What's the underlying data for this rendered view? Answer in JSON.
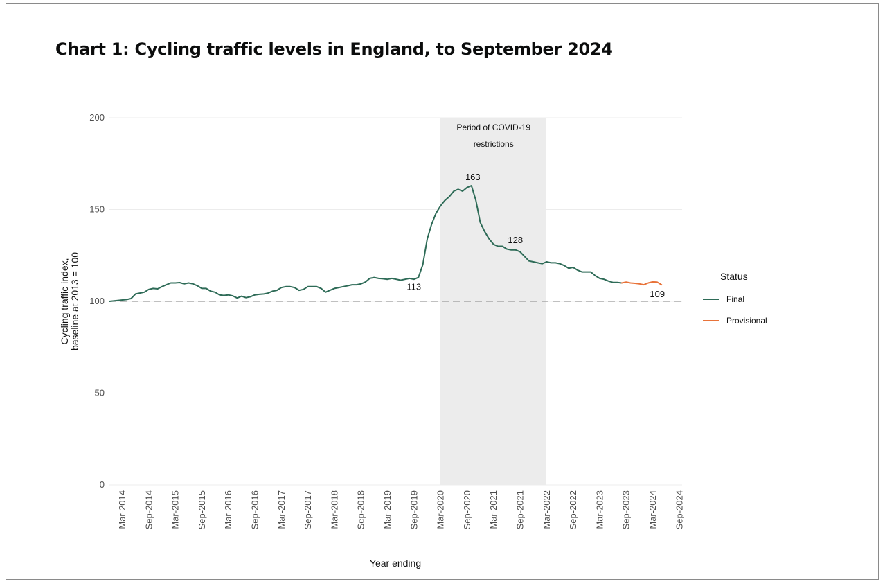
{
  "chart_data": {
    "type": "line",
    "title": "Chart 1: Cycling traffic levels in England, to September 2024",
    "xlabel": "Year ending",
    "ylabel_line1": "Cycling traffic index,",
    "ylabel_line2": "baseline at 2013 = 100",
    "ylim": [
      0,
      200
    ],
    "y_ticks": [
      "0",
      "50",
      "100",
      "150",
      "200"
    ],
    "baseline": 100,
    "x_tick_labels": [
      "Mar-2014",
      "Sep-2014",
      "Mar-2015",
      "Sep-2015",
      "Mar-2016",
      "Sep-2016",
      "Mar-2017",
      "Sep-2017",
      "Mar-2018",
      "Sep-2018",
      "Mar-2019",
      "Sep-2019",
      "Mar-2020",
      "Sep-2020",
      "Mar-2021",
      "Sep-2021",
      "Mar-2022",
      "Sep-2022",
      "Mar-2023",
      "Sep-2023",
      "Mar-2024",
      "Sep-2024"
    ],
    "shaded_region": {
      "label_line1": "Period of COVID-19",
      "label_line2": "restrictions",
      "from": "Mar-2020",
      "to": "Mar-2022"
    },
    "legend": {
      "title": "Status",
      "items": [
        {
          "name": "Final",
          "color": "#2e6b57"
        },
        {
          "name": "Provisional",
          "color": "#e8733a"
        }
      ]
    },
    "series": [
      {
        "name": "Final",
        "color": "#2e6b57",
        "points": [
          [
            0,
            100.0
          ],
          [
            0.167,
            101.0
          ],
          [
            0.333,
            101.5
          ],
          [
            0.5,
            104.0
          ],
          [
            0.667,
            104.5
          ],
          [
            0.833,
            105.0
          ],
          [
            1,
            106.5
          ],
          [
            1.167,
            107.0
          ],
          [
            1.333,
            106.8
          ],
          [
            1.5,
            108.0
          ],
          [
            1.667,
            109.0
          ],
          [
            1.833,
            110.0
          ],
          [
            2,
            110.0
          ],
          [
            2.167,
            110.2
          ],
          [
            2.333,
            109.5
          ],
          [
            2.5,
            110.0
          ],
          [
            2.667,
            109.5
          ],
          [
            2.833,
            108.5
          ],
          [
            3,
            107.0
          ],
          [
            3.167,
            107.0
          ],
          [
            3.333,
            105.5
          ],
          [
            3.5,
            105.0
          ],
          [
            3.667,
            103.5
          ],
          [
            3.833,
            103.2
          ],
          [
            4,
            103.5
          ],
          [
            4.167,
            103.0
          ],
          [
            4.333,
            101.8
          ],
          [
            4.5,
            102.8
          ],
          [
            4.667,
            102.0
          ],
          [
            4.833,
            102.5
          ],
          [
            5,
            103.5
          ],
          [
            5.167,
            103.8
          ],
          [
            5.333,
            104.0
          ],
          [
            5.5,
            104.5
          ],
          [
            5.667,
            105.5
          ],
          [
            5.833,
            106.0
          ],
          [
            6,
            107.5
          ],
          [
            6.167,
            108.0
          ],
          [
            6.333,
            108.0
          ],
          [
            6.5,
            107.5
          ],
          [
            6.667,
            106.0
          ],
          [
            6.833,
            106.5
          ],
          [
            7,
            108.0
          ],
          [
            7.167,
            108.0
          ],
          [
            7.333,
            108.0
          ],
          [
            7.5,
            107.0
          ],
          [
            7.667,
            105.0
          ],
          [
            7.833,
            106.0
          ],
          [
            8,
            107.0
          ],
          [
            8.167,
            107.5
          ],
          [
            8.333,
            108.0
          ],
          [
            8.5,
            108.5
          ],
          [
            8.667,
            109.0
          ],
          [
            8.833,
            109.0
          ],
          [
            9,
            109.5
          ],
          [
            9.167,
            110.5
          ],
          [
            9.333,
            112.5
          ],
          [
            9.5,
            113.0
          ],
          [
            9.667,
            112.5
          ],
          [
            9.833,
            112.3
          ],
          [
            10,
            112.0
          ],
          [
            10.167,
            112.5
          ],
          [
            10.333,
            112.0
          ],
          [
            10.5,
            111.5
          ],
          [
            10.667,
            112.0
          ],
          [
            10.833,
            112.5
          ],
          [
            11,
            112.0
          ],
          [
            11.167,
            113.0
          ],
          [
            11.333,
            120.0
          ],
          [
            11.5,
            134.0
          ],
          [
            11.667,
            142.0
          ],
          [
            11.833,
            148.0
          ],
          [
            12,
            152.0
          ],
          [
            12.167,
            155.0
          ],
          [
            12.333,
            157.0
          ],
          [
            12.5,
            160.0
          ],
          [
            12.667,
            161.0
          ],
          [
            12.833,
            160.0
          ],
          [
            13,
            162.0
          ],
          [
            13.167,
            163.0
          ],
          [
            13.333,
            155.0
          ],
          [
            13.5,
            143.0
          ],
          [
            13.667,
            138.0
          ],
          [
            13.833,
            134.0
          ],
          [
            14,
            131.0
          ],
          [
            14.167,
            130.0
          ],
          [
            14.333,
            130.0
          ],
          [
            14.5,
            128.5
          ],
          [
            14.667,
            128.0
          ],
          [
            14.833,
            128.0
          ],
          [
            15,
            127.0
          ],
          [
            15.167,
            124.5
          ],
          [
            15.333,
            122.0
          ],
          [
            15.5,
            121.5
          ],
          [
            15.667,
            121.0
          ],
          [
            15.833,
            120.5
          ],
          [
            16,
            121.5
          ],
          [
            16.167,
            121.0
          ],
          [
            16.333,
            121.0
          ],
          [
            16.5,
            120.5
          ],
          [
            16.667,
            119.5
          ],
          [
            16.833,
            118.0
          ],
          [
            17,
            118.5
          ],
          [
            17.167,
            117.0
          ],
          [
            17.333,
            116.0
          ],
          [
            17.5,
            116.0
          ],
          [
            17.667,
            116.0
          ],
          [
            17.833,
            114.0
          ],
          [
            18,
            112.5
          ],
          [
            18.167,
            112.0
          ],
          [
            18.333,
            111.0
          ],
          [
            18.5,
            110.3
          ],
          [
            18.667,
            110.3
          ],
          [
            18.833,
            110.0
          ]
        ]
      },
      {
        "name": "Provisional",
        "color": "#e8733a",
        "points": [
          [
            18.833,
            110.0
          ],
          [
            19,
            110.5
          ],
          [
            19.167,
            110.0
          ],
          [
            19.333,
            109.8
          ],
          [
            19.5,
            109.5
          ],
          [
            19.667,
            109.0
          ],
          [
            19.833,
            110.0
          ],
          [
            20,
            110.6
          ],
          [
            20.167,
            110.5
          ],
          [
            20.333,
            109.0
          ]
        ]
      }
    ],
    "annotations": [
      {
        "text": "113",
        "x": 11.0,
        "y": 113
      },
      {
        "text": "163",
        "x": 13.167,
        "y": 163
      },
      {
        "text": "128",
        "x": 14.667,
        "y": 128
      },
      {
        "text": "109",
        "x": 20.333,
        "y": 109
      }
    ]
  }
}
